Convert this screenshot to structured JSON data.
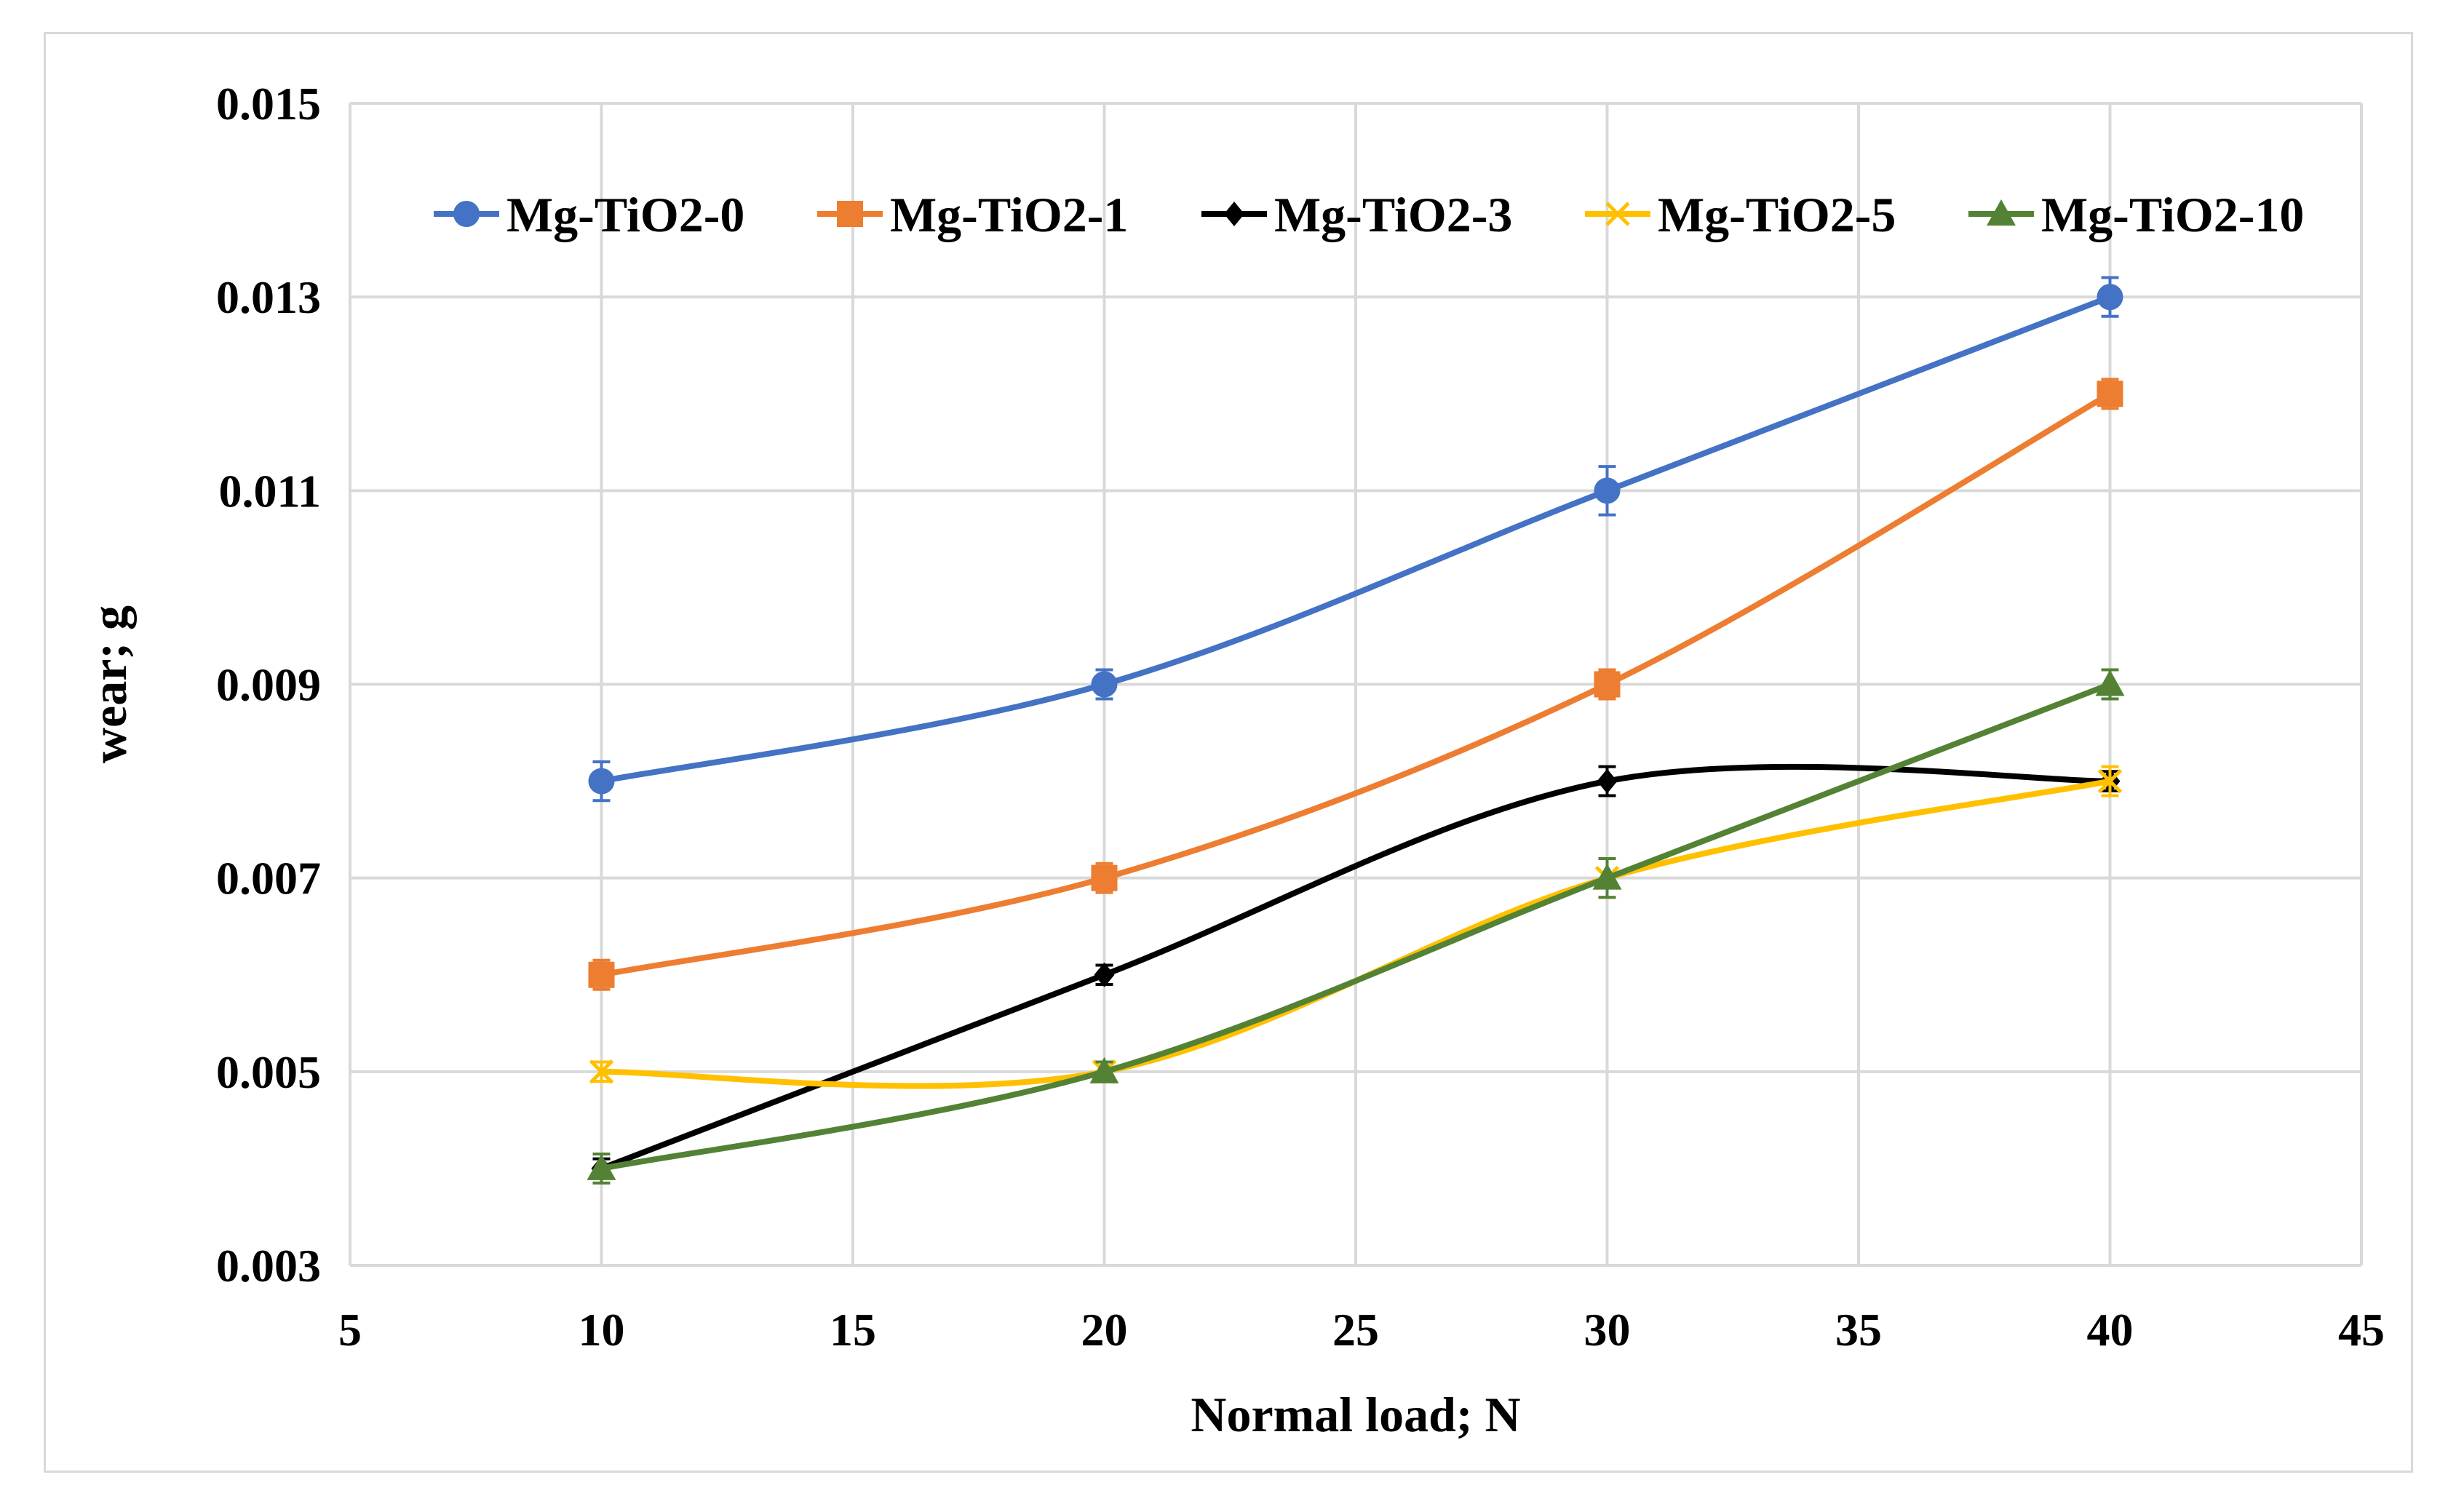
{
  "chart_data": {
    "type": "line",
    "title": "",
    "xlabel": "Normal load; N",
    "ylabel": "wear; g",
    "xlim": [
      5,
      45
    ],
    "ylim": [
      0.003,
      0.015
    ],
    "xticks": [
      5,
      10,
      15,
      20,
      25,
      30,
      35,
      40,
      45
    ],
    "yticks": [
      0.003,
      0.005,
      0.007,
      0.009,
      0.011,
      0.013,
      0.015
    ],
    "x_tick_labels": [
      "5",
      "10",
      "15",
      "20",
      "25",
      "30",
      "35",
      "40",
      "45"
    ],
    "y_tick_labels": [
      "0.003",
      "0.005",
      "0.007",
      "0.009",
      "0.011",
      "0.013",
      "0.015"
    ],
    "grid": true,
    "legend_position": "top",
    "x": [
      10,
      20,
      30,
      40
    ],
    "series": [
      {
        "name": "Mg-TiO2-0",
        "color": "#4472c4",
        "marker": "circle",
        "values": [
          0.008,
          0.009,
          0.011,
          0.013
        ],
        "errors": [
          0.0002,
          0.00015,
          0.00025,
          0.0002
        ]
      },
      {
        "name": "Mg-TiO2-1",
        "color": "#ed7d31",
        "marker": "square",
        "values": [
          0.006,
          0.007,
          0.009,
          0.012
        ],
        "errors": [
          0.00015,
          0.00015,
          0.00015,
          0.00015
        ]
      },
      {
        "name": "Mg-TiO2-3",
        "color": "#000000",
        "marker": "diamond",
        "values": [
          0.004,
          0.006,
          0.008,
          0.008
        ],
        "errors": [
          0.0001,
          0.0001,
          0.00015,
          0.0001
        ]
      },
      {
        "name": "Mg-TiO2-5",
        "color": "#ffc000",
        "marker": "x",
        "values": [
          0.005,
          0.005,
          0.007,
          0.008
        ],
        "errors": [
          0.0001,
          0.0001,
          0.0002,
          0.00015
        ]
      },
      {
        "name": "Mg-TiO2-10",
        "color": "#548235",
        "marker": "triangle",
        "values": [
          0.004,
          0.005,
          0.007,
          0.009
        ],
        "errors": [
          0.00015,
          0.0001,
          0.0002,
          0.00015
        ]
      }
    ]
  }
}
